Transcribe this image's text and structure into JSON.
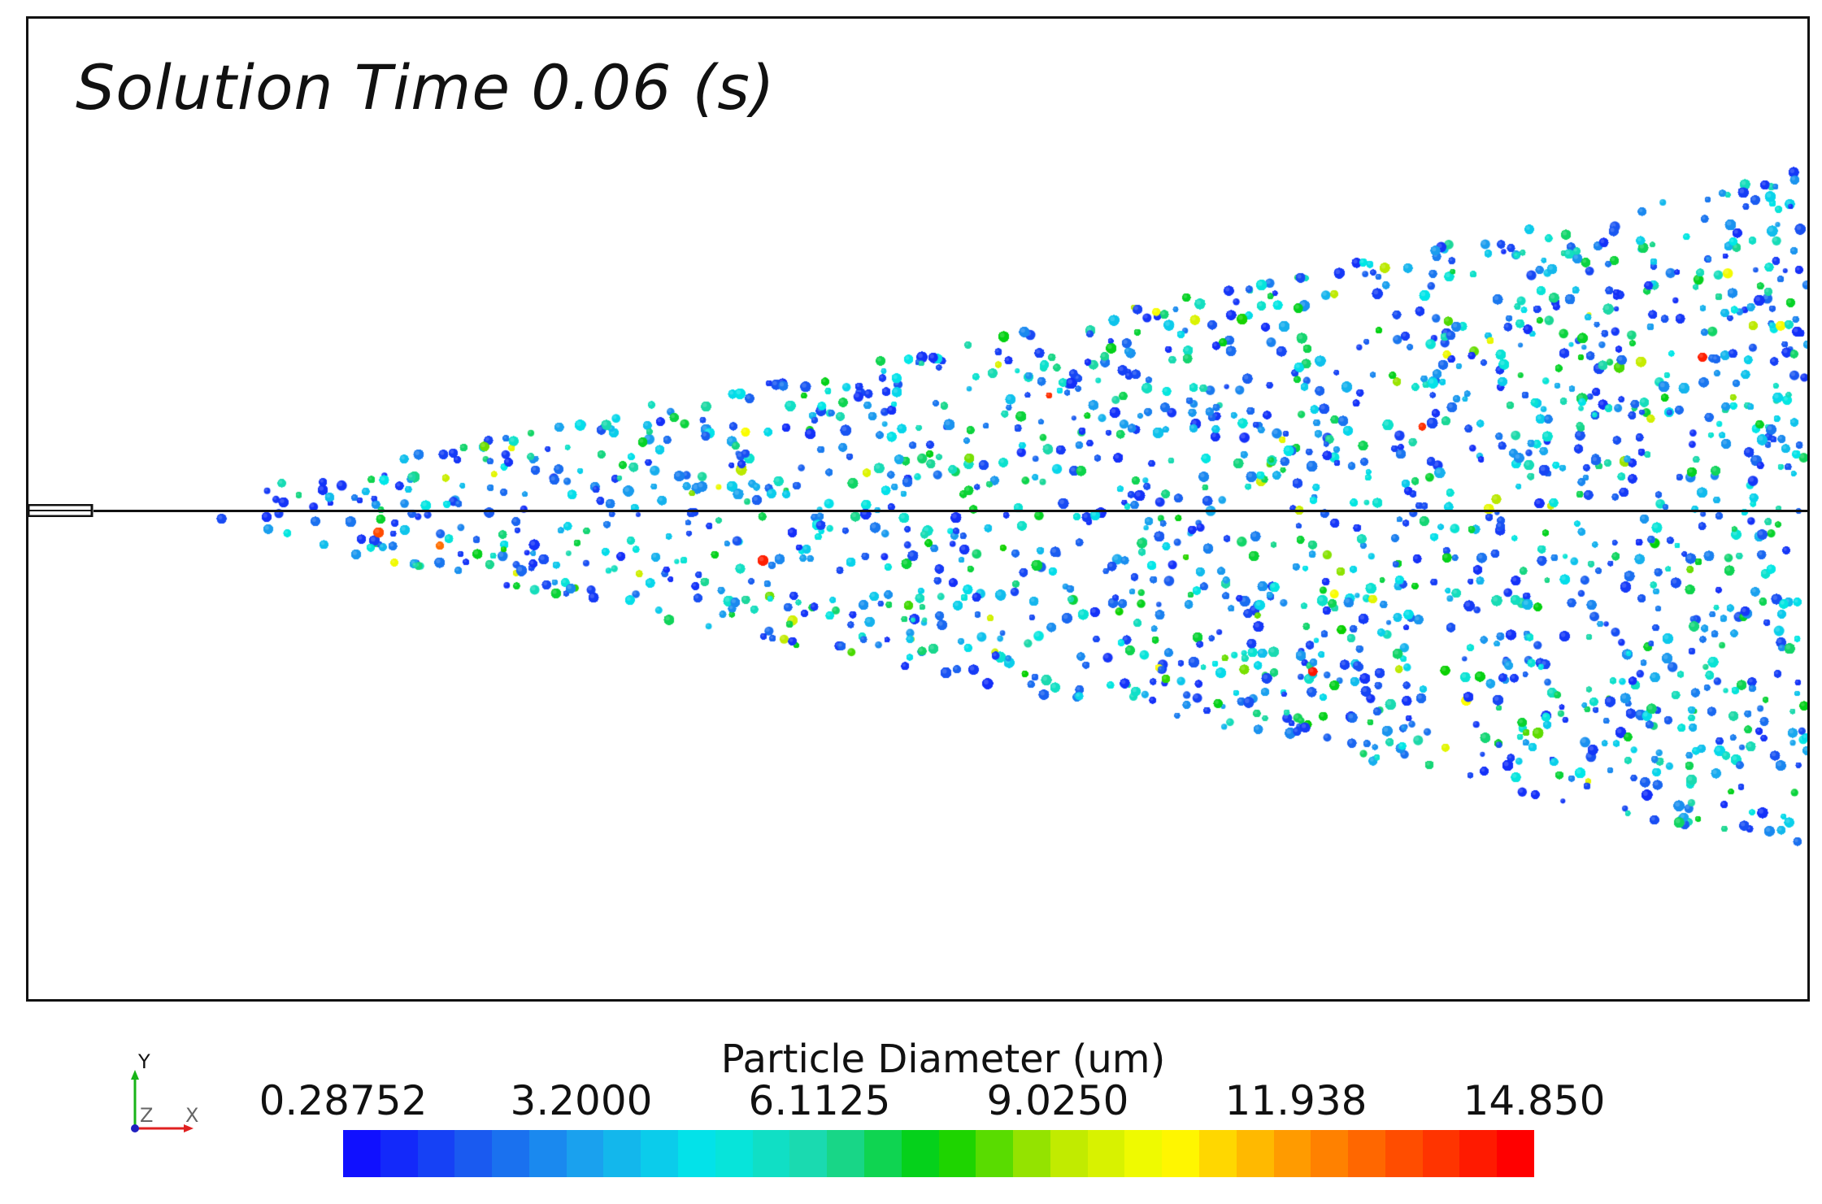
{
  "title": "Solution Time 0.06 (s)",
  "legend": {
    "title": "Particle Diameter (um)",
    "ticks": [
      "0.28752",
      "3.2000",
      "6.1125",
      "9.0250",
      "11.938",
      "14.850"
    ],
    "range": [
      0.28752,
      14.85
    ],
    "colormap_stops": [
      "#1010ff",
      "#1a5cf0",
      "#1aa6ee",
      "#00e8e8",
      "#1ed8a8",
      "#00d000",
      "#b8e800",
      "#ffff00",
      "#ffa000",
      "#ff5000",
      "#ff0000"
    ]
  },
  "triad": {
    "y_label": "Y",
    "z_label": "Z",
    "x_label": "X",
    "y_color": "#18b418",
    "x_color": "#e02020",
    "z_color": "#2020c0"
  },
  "colors": {
    "frame": "#111111",
    "background": "#ffffff"
  }
}
